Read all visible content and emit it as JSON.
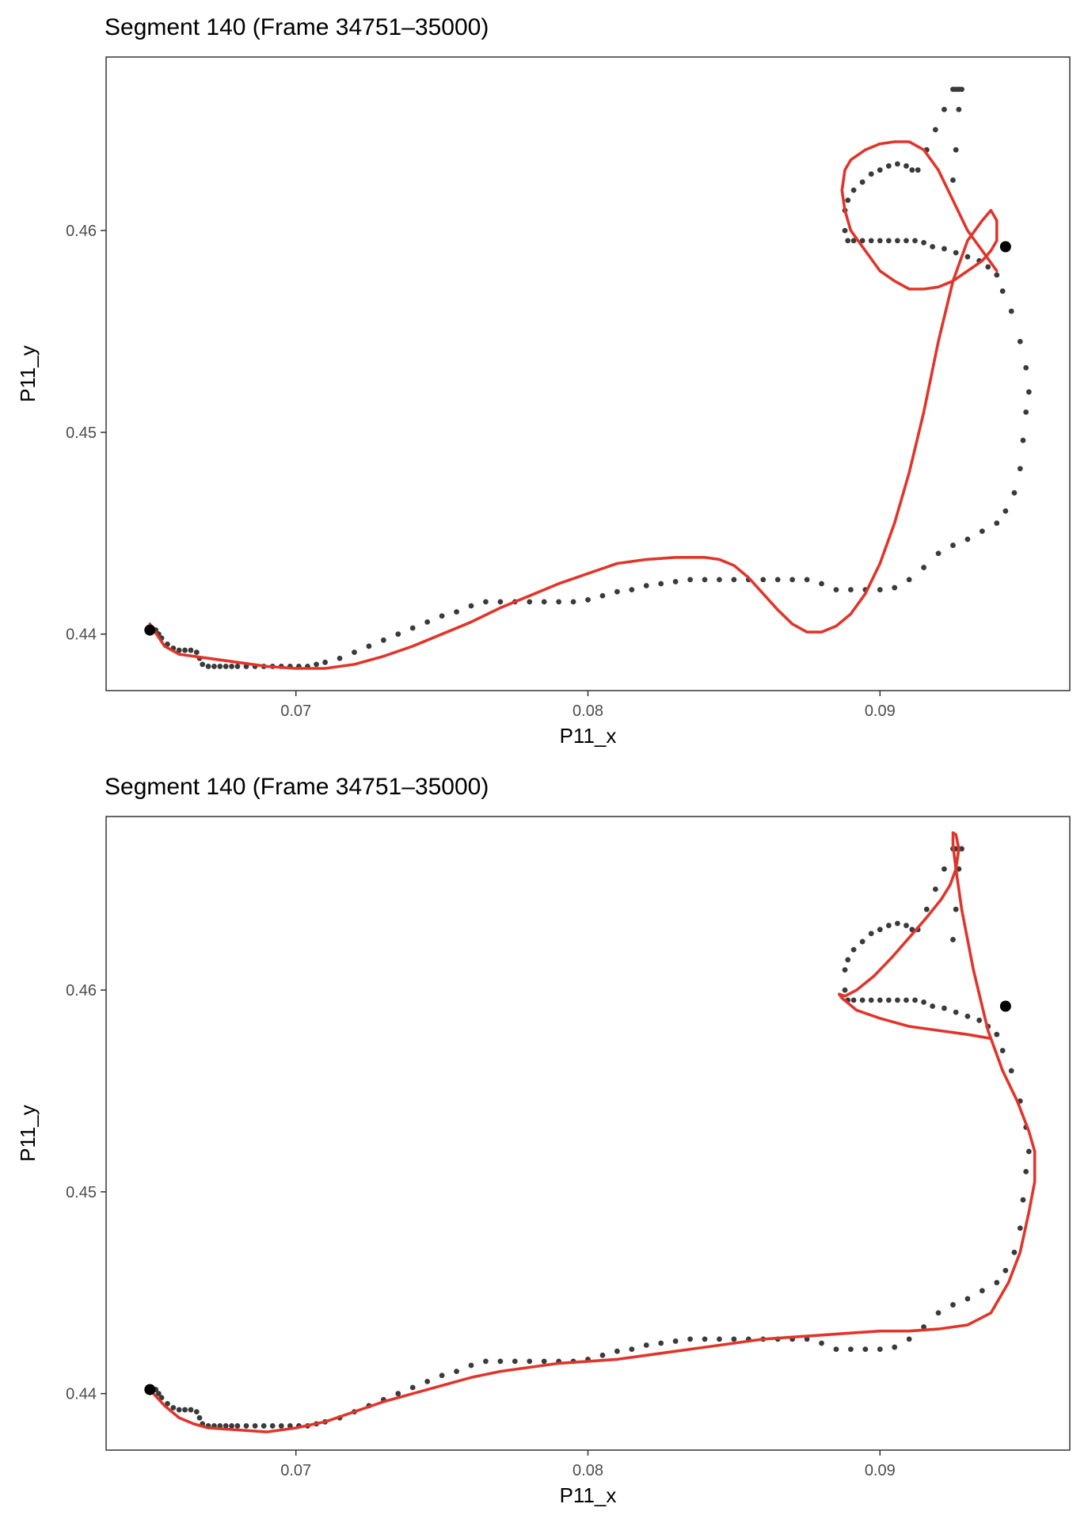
{
  "chart_data": [
    {
      "type": "scatter",
      "title": "Segment 140  (Frame 34751–35000)",
      "xlabel": "P11_x",
      "ylabel": "P11_y",
      "xlim": [
        0.0635,
        0.0965
      ],
      "ylim": [
        0.4372,
        0.4686
      ],
      "x_ticks": [
        {
          "value": 0.07,
          "label": "0.07"
        },
        {
          "value": 0.08,
          "label": "0.08"
        },
        {
          "value": 0.09,
          "label": "0.09"
        }
      ],
      "y_ticks": [
        {
          "value": 0.44,
          "label": "0.44"
        },
        {
          "value": 0.45,
          "label": "0.45"
        },
        {
          "value": 0.46,
          "label": "0.46"
        }
      ],
      "grid": false,
      "point_color": "#3a3a3a",
      "fit_color": "#e0352b",
      "endpoints": [
        {
          "x": 0.065,
          "y": 0.4402
        },
        {
          "x": 0.0943,
          "y": 0.4592
        }
      ],
      "series": [
        {
          "type": "points",
          "x": [
            0.065,
            0.0652,
            0.0653,
            0.0654,
            0.0656,
            0.0658,
            0.066,
            0.0662,
            0.0664,
            0.0666,
            0.0667,
            0.0668,
            0.067,
            0.0672,
            0.0674,
            0.0676,
            0.0678,
            0.068,
            0.0683,
            0.0686,
            0.0689,
            0.0692,
            0.0695,
            0.0698,
            0.0701,
            0.0704,
            0.0707,
            0.071,
            0.0715,
            0.072,
            0.0725,
            0.073,
            0.0735,
            0.074,
            0.0745,
            0.075,
            0.0755,
            0.076,
            0.0765,
            0.077,
            0.0775,
            0.078,
            0.0785,
            0.079,
            0.0795,
            0.08,
            0.0805,
            0.081,
            0.0815,
            0.082,
            0.0825,
            0.083,
            0.0835,
            0.084,
            0.0845,
            0.085,
            0.0855,
            0.086,
            0.0865,
            0.087,
            0.0875,
            0.088,
            0.0885,
            0.089,
            0.0895,
            0.09,
            0.0905,
            0.091,
            0.0915,
            0.092,
            0.0925,
            0.093,
            0.0935,
            0.094,
            0.0943,
            0.0946,
            0.0948,
            0.0949,
            0.095,
            0.0951,
            0.095,
            0.0948,
            0.0945,
            0.0942,
            0.094,
            0.0937,
            0.0934,
            0.093,
            0.0926,
            0.0922,
            0.0918,
            0.0915,
            0.0912,
            0.0909,
            0.0906,
            0.0903,
            0.09,
            0.0897,
            0.0894,
            0.0891,
            0.0889,
            0.0888,
            0.0888,
            0.0889,
            0.0891,
            0.0894,
            0.0897,
            0.09,
            0.0903,
            0.0906,
            0.0909,
            0.0911,
            0.0913,
            0.0916,
            0.0919,
            0.0922,
            0.0925,
            0.0926,
            0.0927,
            0.0928,
            0.0927,
            0.0926,
            0.0925
          ],
          "y": [
            0.4403,
            0.4402,
            0.44,
            0.4398,
            0.4395,
            0.4393,
            0.4392,
            0.4392,
            0.4392,
            0.4391,
            0.4388,
            0.4385,
            0.4384,
            0.4384,
            0.4384,
            0.4384,
            0.4384,
            0.4384,
            0.4384,
            0.4384,
            0.4384,
            0.4384,
            0.4384,
            0.4384,
            0.4384,
            0.4384,
            0.4385,
            0.4386,
            0.4388,
            0.4391,
            0.4394,
            0.4397,
            0.44,
            0.4403,
            0.4406,
            0.4409,
            0.4411,
            0.4414,
            0.4416,
            0.4416,
            0.4416,
            0.4416,
            0.4416,
            0.4416,
            0.4416,
            0.4417,
            0.4419,
            0.4421,
            0.4422,
            0.4424,
            0.4425,
            0.4426,
            0.4427,
            0.4427,
            0.4427,
            0.4427,
            0.4427,
            0.4427,
            0.4427,
            0.4427,
            0.4427,
            0.4425,
            0.4422,
            0.4422,
            0.4422,
            0.4422,
            0.4423,
            0.4427,
            0.4433,
            0.444,
            0.4444,
            0.4447,
            0.4451,
            0.4455,
            0.4461,
            0.447,
            0.4482,
            0.4496,
            0.451,
            0.452,
            0.4532,
            0.4545,
            0.456,
            0.457,
            0.4578,
            0.4582,
            0.4585,
            0.4587,
            0.4589,
            0.4591,
            0.4592,
            0.4594,
            0.4595,
            0.4595,
            0.4595,
            0.4595,
            0.4595,
            0.4595,
            0.4595,
            0.4595,
            0.4595,
            0.46,
            0.461,
            0.4615,
            0.462,
            0.4624,
            0.4628,
            0.463,
            0.4632,
            0.4633,
            0.4632,
            0.463,
            0.463,
            0.464,
            0.465,
            0.466,
            0.467,
            0.467,
            0.467,
            0.467,
            0.466,
            0.464,
            0.4625
          ]
        },
        {
          "type": "fit",
          "x": [
            0.065,
            0.0655,
            0.066,
            0.067,
            0.068,
            0.069,
            0.07,
            0.071,
            0.072,
            0.073,
            0.074,
            0.075,
            0.076,
            0.077,
            0.078,
            0.079,
            0.08,
            0.081,
            0.082,
            0.083,
            0.084,
            0.0845,
            0.085,
            0.0855,
            0.086,
            0.0865,
            0.087,
            0.0875,
            0.088,
            0.0885,
            0.089,
            0.0895,
            0.09,
            0.0905,
            0.091,
            0.0915,
            0.092,
            0.0925,
            0.093,
            0.0935,
            0.0938,
            0.094,
            0.094,
            0.0938,
            0.0935,
            0.093,
            0.0925,
            0.092,
            0.0915,
            0.091,
            0.0905,
            0.09,
            0.0895,
            0.089,
            0.0888,
            0.0887,
            0.0888,
            0.089,
            0.0895,
            0.09,
            0.0905,
            0.091,
            0.0915,
            0.092,
            0.0925,
            0.093,
            0.0935,
            0.094
          ],
          "y": [
            0.4405,
            0.4394,
            0.439,
            0.4388,
            0.4386,
            0.4384,
            0.4383,
            0.4383,
            0.4385,
            0.4389,
            0.4394,
            0.44,
            0.4406,
            0.4413,
            0.4419,
            0.4425,
            0.443,
            0.4435,
            0.4437,
            0.4438,
            0.4438,
            0.4437,
            0.4434,
            0.4428,
            0.442,
            0.4412,
            0.4405,
            0.4401,
            0.4401,
            0.4404,
            0.441,
            0.442,
            0.4435,
            0.4455,
            0.448,
            0.451,
            0.4545,
            0.4575,
            0.4595,
            0.4605,
            0.461,
            0.4605,
            0.4595,
            0.459,
            0.4585,
            0.458,
            0.4575,
            0.4572,
            0.4571,
            0.4571,
            0.4575,
            0.458,
            0.459,
            0.46,
            0.461,
            0.462,
            0.463,
            0.4635,
            0.464,
            0.4643,
            0.4644,
            0.4644,
            0.464,
            0.463,
            0.4615,
            0.46,
            0.459,
            0.458
          ]
        }
      ]
    },
    {
      "type": "scatter",
      "title": "Segment 140  (Frame 34751–35000)",
      "xlabel": "P11_x",
      "ylabel": "P11_y",
      "xlim": [
        0.0635,
        0.0965
      ],
      "ylim": [
        0.4372,
        0.4686
      ],
      "x_ticks": [
        {
          "value": 0.07,
          "label": "0.07"
        },
        {
          "value": 0.08,
          "label": "0.08"
        },
        {
          "value": 0.09,
          "label": "0.09"
        }
      ],
      "y_ticks": [
        {
          "value": 0.44,
          "label": "0.44"
        },
        {
          "value": 0.45,
          "label": "0.45"
        },
        {
          "value": 0.46,
          "label": "0.46"
        }
      ],
      "grid": false,
      "point_color": "#3a3a3a",
      "fit_color": "#e0352b",
      "endpoints": [
        {
          "x": 0.065,
          "y": 0.4402
        },
        {
          "x": 0.0943,
          "y": 0.4592
        }
      ],
      "series": [
        {
          "type": "points",
          "x": [
            0.065,
            0.0652,
            0.0653,
            0.0654,
            0.0656,
            0.0658,
            0.066,
            0.0662,
            0.0664,
            0.0666,
            0.0667,
            0.0668,
            0.067,
            0.0672,
            0.0674,
            0.0676,
            0.0678,
            0.068,
            0.0683,
            0.0686,
            0.0689,
            0.0692,
            0.0695,
            0.0698,
            0.0701,
            0.0704,
            0.0707,
            0.071,
            0.0715,
            0.072,
            0.0725,
            0.073,
            0.0735,
            0.074,
            0.0745,
            0.075,
            0.0755,
            0.076,
            0.0765,
            0.077,
            0.0775,
            0.078,
            0.0785,
            0.079,
            0.0795,
            0.08,
            0.0805,
            0.081,
            0.0815,
            0.082,
            0.0825,
            0.083,
            0.0835,
            0.084,
            0.0845,
            0.085,
            0.0855,
            0.086,
            0.0865,
            0.087,
            0.0875,
            0.088,
            0.0885,
            0.089,
            0.0895,
            0.09,
            0.0905,
            0.091,
            0.0915,
            0.092,
            0.0925,
            0.093,
            0.0935,
            0.094,
            0.0943,
            0.0946,
            0.0948,
            0.0949,
            0.095,
            0.0951,
            0.095,
            0.0948,
            0.0945,
            0.0942,
            0.094,
            0.0937,
            0.0934,
            0.093,
            0.0926,
            0.0922,
            0.0918,
            0.0915,
            0.0912,
            0.0909,
            0.0906,
            0.0903,
            0.09,
            0.0897,
            0.0894,
            0.0891,
            0.0889,
            0.0888,
            0.0888,
            0.0889,
            0.0891,
            0.0894,
            0.0897,
            0.09,
            0.0903,
            0.0906,
            0.0909,
            0.0911,
            0.0913,
            0.0916,
            0.0919,
            0.0922,
            0.0925,
            0.0926,
            0.0927,
            0.0928,
            0.0927,
            0.0926,
            0.0925
          ],
          "y": [
            0.4403,
            0.4402,
            0.44,
            0.4398,
            0.4395,
            0.4393,
            0.4392,
            0.4392,
            0.4392,
            0.4391,
            0.4388,
            0.4385,
            0.4384,
            0.4384,
            0.4384,
            0.4384,
            0.4384,
            0.4384,
            0.4384,
            0.4384,
            0.4384,
            0.4384,
            0.4384,
            0.4384,
            0.4384,
            0.4384,
            0.4385,
            0.4386,
            0.4388,
            0.4391,
            0.4394,
            0.4397,
            0.44,
            0.4403,
            0.4406,
            0.4409,
            0.4411,
            0.4414,
            0.4416,
            0.4416,
            0.4416,
            0.4416,
            0.4416,
            0.4416,
            0.4416,
            0.4417,
            0.4419,
            0.4421,
            0.4422,
            0.4424,
            0.4425,
            0.4426,
            0.4427,
            0.4427,
            0.4427,
            0.4427,
            0.4427,
            0.4427,
            0.4427,
            0.4427,
            0.4427,
            0.4425,
            0.4422,
            0.4422,
            0.4422,
            0.4422,
            0.4423,
            0.4427,
            0.4433,
            0.444,
            0.4444,
            0.4447,
            0.4451,
            0.4455,
            0.4461,
            0.447,
            0.4482,
            0.4496,
            0.451,
            0.452,
            0.4532,
            0.4545,
            0.456,
            0.457,
            0.4578,
            0.4582,
            0.4585,
            0.4587,
            0.4589,
            0.4591,
            0.4592,
            0.4594,
            0.4595,
            0.4595,
            0.4595,
            0.4595,
            0.4595,
            0.4595,
            0.4595,
            0.4595,
            0.4595,
            0.46,
            0.461,
            0.4615,
            0.462,
            0.4624,
            0.4628,
            0.463,
            0.4632,
            0.4633,
            0.4632,
            0.463,
            0.463,
            0.464,
            0.465,
            0.466,
            0.467,
            0.467,
            0.467,
            0.467,
            0.466,
            0.464,
            0.4625
          ]
        },
        {
          "type": "fit",
          "x": [
            0.065,
            0.0655,
            0.066,
            0.0665,
            0.067,
            0.068,
            0.069,
            0.07,
            0.071,
            0.072,
            0.073,
            0.074,
            0.075,
            0.076,
            0.077,
            0.078,
            0.079,
            0.08,
            0.081,
            0.082,
            0.083,
            0.084,
            0.085,
            0.086,
            0.087,
            0.088,
            0.089,
            0.09,
            0.091,
            0.092,
            0.093,
            0.0938,
            0.0944,
            0.0948,
            0.0951,
            0.0953,
            0.0953,
            0.0951,
            0.0947,
            0.0942,
            0.0937,
            0.0932,
            0.0928,
            0.0926,
            0.0925,
            0.0925,
            0.0926,
            0.0927,
            0.0926,
            0.0924,
            0.0921,
            0.0916,
            0.091,
            0.0904,
            0.0898,
            0.0892,
            0.0888,
            0.0886,
            0.0887,
            0.0892,
            0.09,
            0.091,
            0.092,
            0.093,
            0.0938
          ],
          "y": [
            0.4402,
            0.4394,
            0.4388,
            0.4385,
            0.4383,
            0.4382,
            0.4381,
            0.4383,
            0.4386,
            0.4391,
            0.4396,
            0.44,
            0.4404,
            0.4408,
            0.4411,
            0.4413,
            0.4415,
            0.4416,
            0.4417,
            0.4419,
            0.4421,
            0.4423,
            0.4425,
            0.4427,
            0.4428,
            0.4429,
            0.443,
            0.4431,
            0.4431,
            0.4432,
            0.4434,
            0.444,
            0.4455,
            0.447,
            0.449,
            0.4505,
            0.452,
            0.453,
            0.4545,
            0.456,
            0.458,
            0.461,
            0.464,
            0.466,
            0.4672,
            0.4678,
            0.4677,
            0.467,
            0.466,
            0.4652,
            0.4645,
            0.4636,
            0.4626,
            0.4616,
            0.4607,
            0.46,
            0.4597,
            0.4598,
            0.4596,
            0.459,
            0.4586,
            0.4582,
            0.458,
            0.4578,
            0.4576
          ]
        }
      ]
    }
  ]
}
